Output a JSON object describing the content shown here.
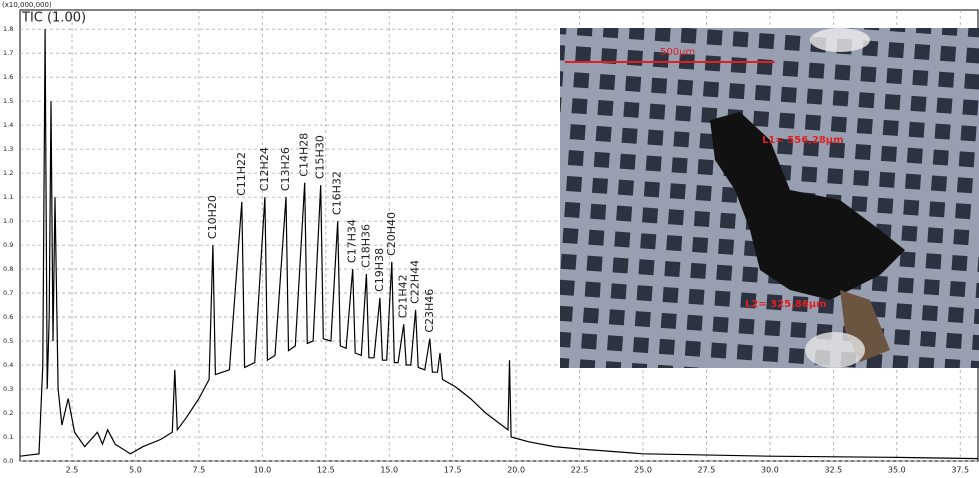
{
  "chart_data": {
    "type": "line",
    "title": "TIC (1.00)",
    "y_unit": "(x10,000,000)",
    "xlim": [
      0.45,
      38.2
    ],
    "ylim": [
      0,
      1.88
    ],
    "grid": true,
    "xticks": [
      2.5,
      {
        "value": 5,
        "label": "5.0"
      },
      7.5,
      {
        "value": 10,
        "label": "10.0"
      },
      12.5,
      {
        "value": 15,
        "label": "15.0"
      },
      17.5,
      {
        "value": 20,
        "label": "20.0"
      },
      22.5,
      {
        "value": 25,
        "label": "25.0"
      },
      27.5,
      {
        "value": 30,
        "label": "30.0"
      },
      32.5,
      {
        "value": 35,
        "label": "35.0"
      },
      37.5
    ],
    "yticks": [
      {
        "value": 0,
        "label": "0.0"
      },
      0.1,
      0.2,
      0.3,
      0.4,
      0.5,
      0.6,
      0.7,
      0.8,
      0.9,
      {
        "value": 1,
        "label": "1.0"
      },
      1.1,
      1.2,
      1.3,
      1.4,
      1.5,
      1.6,
      1.7,
      1.8
    ],
    "series": [
      {
        "color": "#000000",
        "x": [
          0.45,
          1.2,
          1.35,
          1.44,
          1.52,
          1.6,
          1.67,
          1.75,
          1.83,
          1.95,
          2.1,
          2.35,
          2.6,
          3.0,
          3.5,
          3.7,
          3.9,
          4.2,
          4.8,
          5.3,
          6.0,
          6.45,
          6.55,
          6.65,
          7.0,
          7.5,
          7.9,
          8.05,
          8.15,
          8.7,
          9.19,
          9.3,
          9.7,
          10.1,
          10.2,
          10.5,
          10.93,
          11.03,
          11.3,
          11.67,
          11.77,
          12.0,
          12.3,
          12.4,
          12.7,
          12.97,
          13.07,
          13.3,
          13.56,
          13.66,
          13.9,
          14.1,
          14.2,
          14.4,
          14.63,
          14.73,
          14.9,
          15.1,
          15.2,
          15.35,
          15.57,
          15.67,
          15.85,
          16.04,
          16.14,
          16.4,
          16.6,
          16.7,
          16.9,
          17.0,
          17.1,
          17.6,
          18.2,
          18.8,
          19.3,
          19.68,
          19.74,
          19.8,
          20.5,
          21.5,
          22.5,
          25,
          30,
          35,
          38.2
        ],
        "values": [
          0.02,
          0.03,
          0.4,
          1.8,
          0.3,
          0.6,
          1.5,
          0.5,
          1.1,
          0.3,
          0.15,
          0.26,
          0.12,
          0.06,
          0.12,
          0.07,
          0.13,
          0.07,
          0.03,
          0.06,
          0.09,
          0.12,
          0.38,
          0.13,
          0.18,
          0.26,
          0.34,
          0.9,
          0.36,
          0.38,
          1.08,
          0.39,
          0.41,
          1.1,
          0.42,
          0.44,
          1.1,
          0.46,
          0.48,
          1.16,
          0.49,
          0.5,
          1.15,
          0.51,
          0.5,
          1.0,
          0.48,
          0.47,
          0.8,
          0.45,
          0.44,
          0.78,
          0.43,
          0.43,
          0.68,
          0.42,
          0.42,
          0.83,
          0.41,
          0.41,
          0.57,
          0.4,
          0.4,
          0.63,
          0.39,
          0.38,
          0.51,
          0.37,
          0.37,
          0.45,
          0.34,
          0.31,
          0.26,
          0.2,
          0.16,
          0.13,
          0.42,
          0.1,
          0.08,
          0.06,
          0.05,
          0.03,
          0.02,
          0.015,
          0.01
        ]
      }
    ],
    "peaks": [
      {
        "label": "C10H20",
        "x": 8.05
      },
      {
        "label": "C11H22",
        "x": 9.19
      },
      {
        "label": "C12H24",
        "x": 10.1
      },
      {
        "label": "C13H26",
        "x": 10.93
      },
      {
        "label": "C14H28",
        "x": 11.67
      },
      {
        "label": "C15H30",
        "x": 12.3
      },
      {
        "label": "C16H32",
        "x": 12.97
      },
      {
        "label": "C17H34",
        "x": 13.56
      },
      {
        "label": "C18H36",
        "x": 14.1
      },
      {
        "label": "C19H38",
        "x": 14.63
      },
      {
        "label": "C20H40",
        "x": 15.1
      },
      {
        "label": "C21H42",
        "x": 15.57
      },
      {
        "label": "C22H44",
        "x": 16.04
      },
      {
        "label": "C23H46",
        "x": 16.6
      }
    ]
  },
  "inset": {
    "scale_label": "500µm",
    "measurements": [
      "L1= 556,28µm",
      "L2= 325,86µm"
    ]
  }
}
